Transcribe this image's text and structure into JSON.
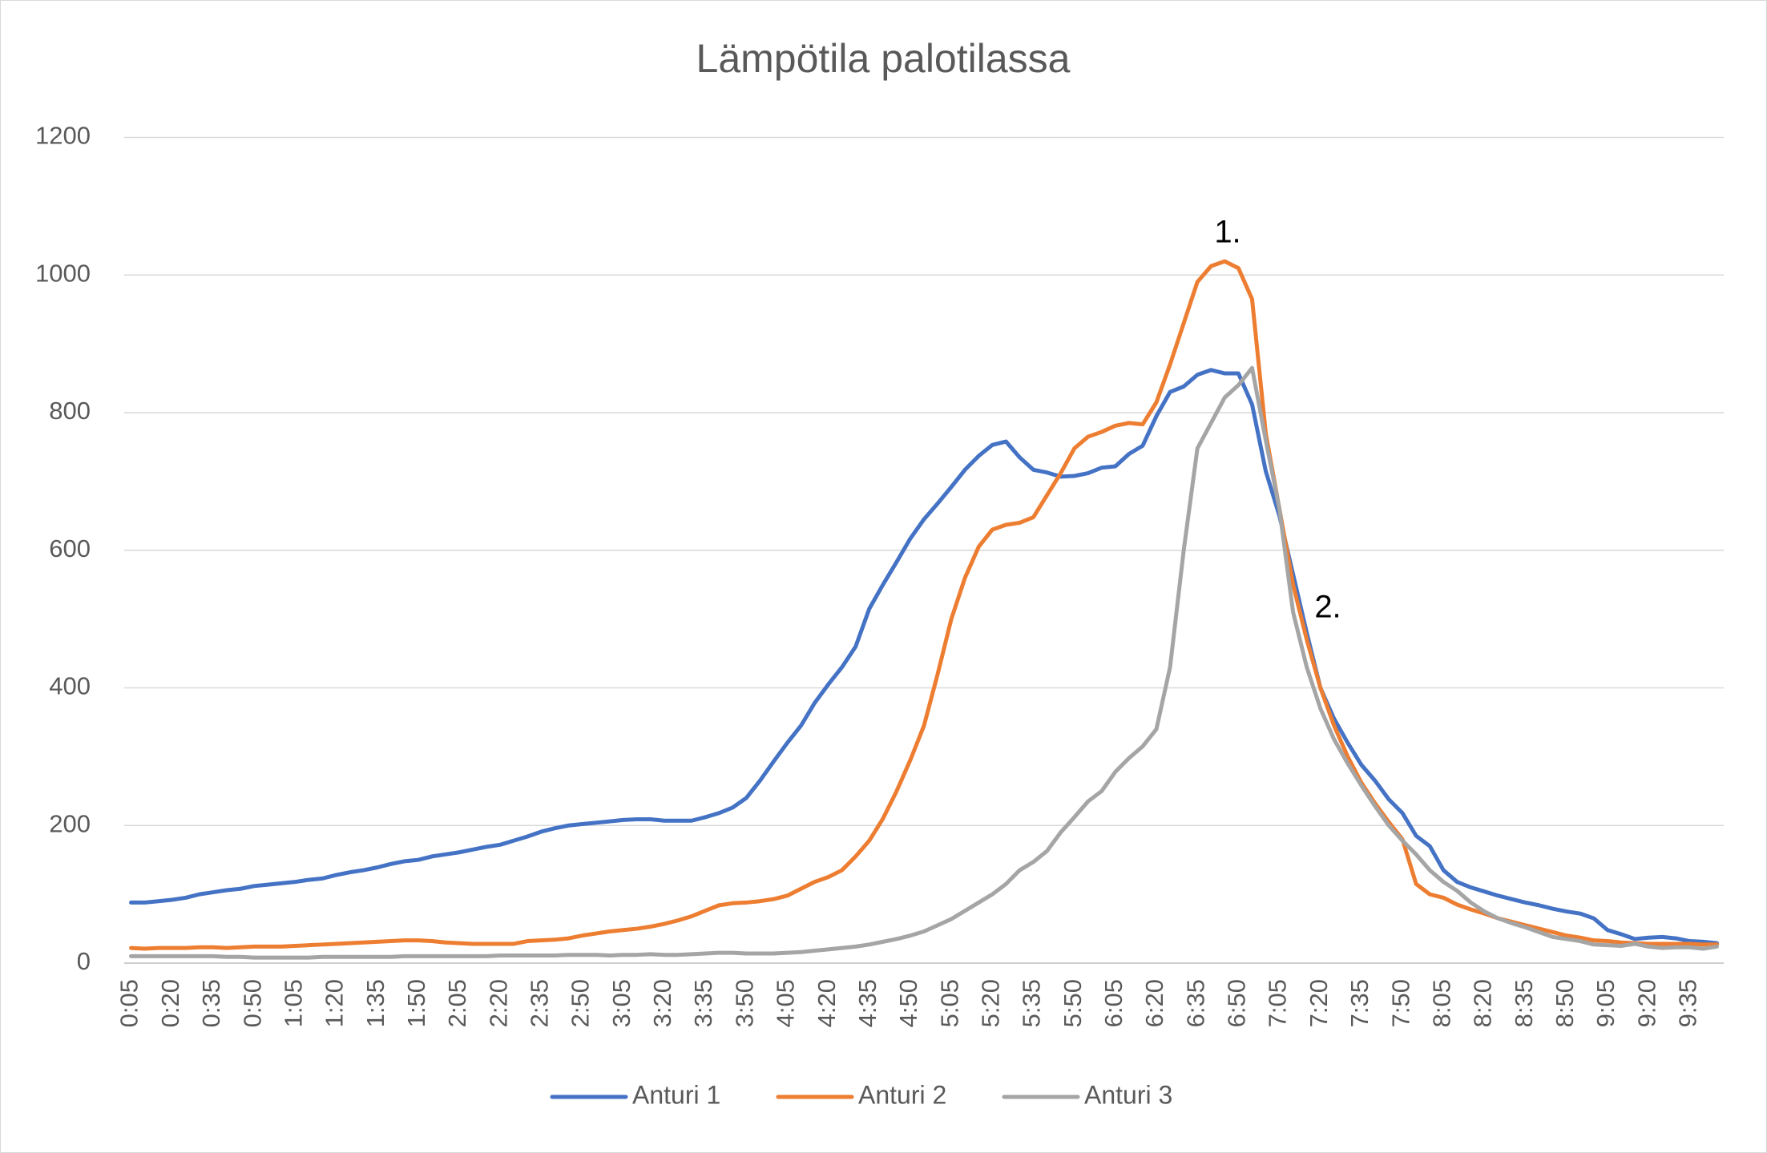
{
  "chart_data": {
    "type": "line",
    "title": "Lämpötila palotilassa",
    "categories": [
      "0:05",
      null,
      null,
      "0:20",
      null,
      null,
      "0:35",
      null,
      null,
      "0:50",
      null,
      null,
      "1:05",
      null,
      null,
      "1:20",
      null,
      null,
      "1:35",
      null,
      null,
      "1:50",
      null,
      null,
      "2:05",
      null,
      null,
      "2:20",
      null,
      null,
      "2:35",
      null,
      null,
      "2:50",
      null,
      null,
      "3:05",
      null,
      null,
      "3:20",
      null,
      null,
      "3:35",
      null,
      null,
      "3:50",
      null,
      null,
      "4:05",
      null,
      null,
      "4:20",
      null,
      null,
      "4:35",
      null,
      null,
      "4:50",
      null,
      null,
      "5:05",
      null,
      null,
      "5:20",
      null,
      null,
      "5:35",
      null,
      null,
      "5:50",
      null,
      null,
      "6:05",
      null,
      null,
      "6:20",
      null,
      null,
      "6:35",
      null,
      null,
      "6:50",
      null,
      null,
      "7:05",
      null,
      null,
      "7:20",
      null,
      null,
      "7:35",
      null,
      null,
      "7:50",
      null,
      null,
      "8:05",
      null,
      null,
      "8:20",
      null,
      null,
      "8:35",
      null,
      null,
      "8:50",
      null,
      null,
      "9:05",
      null,
      null,
      "9:20",
      null,
      null,
      "9:35",
      null,
      null
    ],
    "series": [
      {
        "name": "Anturi 1",
        "color": "#4472c4",
        "values": [
          88,
          88,
          90,
          92,
          95,
          100,
          103,
          106,
          108,
          112,
          114,
          116,
          118,
          121,
          123,
          128,
          132,
          135,
          139,
          144,
          148,
          150,
          155,
          158,
          161,
          165,
          169,
          172,
          178,
          184,
          191,
          196,
          200,
          202,
          204,
          206,
          208,
          209,
          209,
          207,
          207,
          207,
          212,
          218,
          226,
          240,
          265,
          293,
          320,
          345,
          378,
          405,
          430,
          460,
          515,
          550,
          583,
          617,
          645,
          668,
          692,
          717,
          737,
          753,
          758,
          735,
          717,
          713,
          707,
          708,
          712,
          720,
          722,
          740,
          752,
          795,
          830,
          838,
          855,
          862,
          857,
          857,
          812,
          715,
          650,
          565,
          480,
          400,
          355,
          320,
          288,
          265,
          238,
          218,
          185,
          170,
          135,
          118,
          110,
          104,
          98,
          93,
          88,
          84,
          79,
          75,
          72,
          65,
          48,
          42,
          35,
          37,
          38,
          36,
          32,
          31,
          29
        ]
      },
      {
        "name": "Anturi 2",
        "color": "#ed7d31",
        "values": [
          22,
          21,
          22,
          22,
          22,
          23,
          23,
          22,
          23,
          24,
          24,
          24,
          25,
          26,
          27,
          28,
          29,
          30,
          31,
          32,
          33,
          33,
          32,
          30,
          29,
          28,
          28,
          28,
          28,
          32,
          33,
          34,
          36,
          40,
          43,
          46,
          48,
          50,
          53,
          57,
          62,
          68,
          76,
          84,
          87,
          88,
          90,
          93,
          98,
          108,
          118,
          125,
          135,
          155,
          178,
          210,
          250,
          295,
          345,
          420,
          500,
          560,
          605,
          630,
          637,
          640,
          648,
          680,
          712,
          748,
          765,
          772,
          781,
          785,
          783,
          815,
          870,
          930,
          990,
          1013,
          1020,
          1010,
          965,
          770,
          660,
          550,
          470,
          400,
          345,
          300,
          262,
          232,
          205,
          180,
          115,
          100,
          95,
          85,
          78,
          72,
          65,
          60,
          55,
          50,
          45,
          40,
          37,
          33,
          32,
          30,
          29,
          28,
          28,
          28,
          28,
          27,
          27
        ]
      },
      {
        "name": "Anturi 3",
        "color": "#a5a5a5",
        "values": [
          10,
          10,
          10,
          10,
          10,
          10,
          10,
          9,
          9,
          8,
          8,
          8,
          8,
          8,
          9,
          9,
          9,
          9,
          9,
          9,
          10,
          10,
          10,
          10,
          10,
          10,
          10,
          11,
          11,
          11,
          11,
          11,
          12,
          12,
          12,
          11,
          12,
          12,
          13,
          12,
          12,
          13,
          14,
          15,
          15,
          14,
          14,
          14,
          15,
          16,
          18,
          20,
          22,
          24,
          27,
          31,
          35,
          40,
          46,
          55,
          64,
          76,
          88,
          100,
          115,
          135,
          147,
          163,
          190,
          212,
          235,
          250,
          278,
          298,
          315,
          340,
          430,
          600,
          748,
          785,
          822,
          840,
          865,
          760,
          660,
          510,
          430,
          370,
          325,
          290,
          258,
          228,
          200,
          178,
          158,
          135,
          118,
          105,
          88,
          75,
          65,
          58,
          52,
          45,
          38,
          35,
          32,
          27,
          26,
          25,
          28,
          24,
          22,
          23,
          23,
          21,
          24
        ]
      }
    ],
    "annotations": [
      "1.",
      "2."
    ],
    "ylim": [
      0,
      1200
    ],
    "yticks": [
      0,
      200,
      400,
      600,
      800,
      1000,
      1200
    ],
    "grid": true,
    "legend": "bottom"
  }
}
